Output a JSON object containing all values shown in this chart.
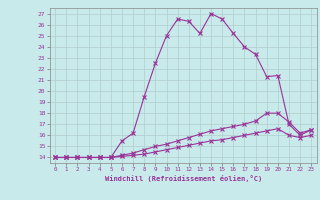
{
  "xlabel": "Windchill (Refroidissement éolien,°C)",
  "background_color": "#c8eaea",
  "grid_color": "#b0cccc",
  "line_color": "#993399",
  "x_hours": [
    0,
    1,
    2,
    3,
    4,
    5,
    6,
    7,
    8,
    9,
    10,
    11,
    12,
    13,
    14,
    15,
    16,
    17,
    18,
    19,
    20,
    21,
    22,
    23
  ],
  "line1_y": [
    14,
    14,
    14,
    14,
    14,
    14,
    15.5,
    16.2,
    19.5,
    22.5,
    25,
    26.5,
    26.3,
    25.2,
    27.0,
    26.5,
    25.2,
    24.0,
    23.3,
    21.3,
    21.4,
    17.0,
    16.0,
    16.5
  ],
  "line2_y": [
    14,
    14,
    14,
    14,
    14,
    14,
    14.2,
    14.4,
    14.7,
    15.0,
    15.2,
    15.5,
    15.8,
    16.1,
    16.4,
    16.6,
    16.8,
    17.0,
    17.3,
    18.0,
    18.0,
    17.2,
    16.2,
    16.5
  ],
  "line3_y": [
    14,
    14,
    14,
    14,
    14,
    14,
    14.1,
    14.2,
    14.3,
    14.5,
    14.7,
    14.9,
    15.1,
    15.3,
    15.5,
    15.6,
    15.8,
    16.0,
    16.2,
    16.4,
    16.6,
    16.0,
    15.8,
    16.0
  ],
  "ylim": [
    13.5,
    27.5
  ],
  "xlim": [
    -0.5,
    23.5
  ],
  "yticks": [
    14,
    15,
    16,
    17,
    18,
    19,
    20,
    21,
    22,
    23,
    24,
    25,
    26,
    27
  ],
  "xticks": [
    0,
    1,
    2,
    3,
    4,
    5,
    6,
    7,
    8,
    9,
    10,
    11,
    12,
    13,
    14,
    15,
    16,
    17,
    18,
    19,
    20,
    21,
    22,
    23
  ]
}
